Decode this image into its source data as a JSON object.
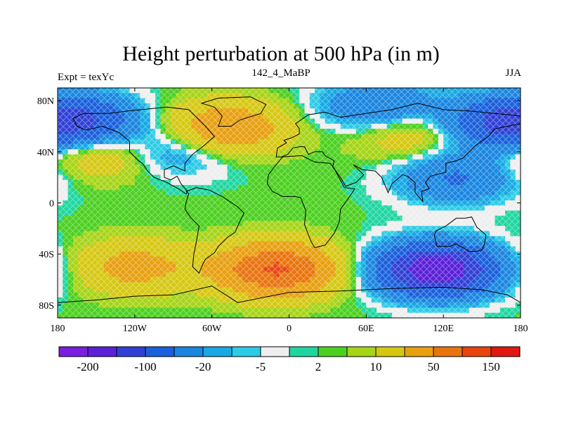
{
  "title": "Height perturbation at 500 hPa (in m)",
  "left_string": "Expt = texYc",
  "center_string": "142_4_MaBP",
  "right_string": "JJA",
  "x_ticks": [
    {
      "value": -180,
      "label": "180"
    },
    {
      "value": -120,
      "label": "120W"
    },
    {
      "value": -60,
      "label": "60W"
    },
    {
      "value": 0,
      "label": "0"
    },
    {
      "value": 60,
      "label": "60E"
    },
    {
      "value": 120,
      "label": "120E"
    },
    {
      "value": 180,
      "label": "180"
    }
  ],
  "y_ticks": [
    {
      "value": 80,
      "label": "80N"
    },
    {
      "value": 40,
      "label": "40N"
    },
    {
      "value": 0,
      "label": "0"
    },
    {
      "value": -40,
      "label": "40S"
    },
    {
      "value": -80,
      "label": "80S"
    }
  ],
  "colorbar": {
    "colors": [
      "#7a1de0",
      "#5a20d8",
      "#3040d6",
      "#1a60dc",
      "#1a86e0",
      "#18a8e4",
      "#2ccbe6",
      "#eeeeee",
      "#20d6a0",
      "#4cd020",
      "#a6d416",
      "#d6c812",
      "#e8a010",
      "#e87410",
      "#e84410",
      "#e01810"
    ],
    "labels": [
      {
        "boundary": 1,
        "text": "-200"
      },
      {
        "boundary": 3,
        "text": "-100"
      },
      {
        "boundary": 5,
        "text": "-20"
      },
      {
        "boundary": 7,
        "text": "-5"
      },
      {
        "boundary": 9,
        "text": "2"
      },
      {
        "boundary": 11,
        "text": "10"
      },
      {
        "boundary": 13,
        "text": "50"
      },
      {
        "boundary": 15,
        "text": "150"
      }
    ]
  },
  "chart_data": {
    "type": "heatmap",
    "title": "Height perturbation at 500 hPa (in m)",
    "xlim": [
      -180,
      180
    ],
    "ylim": [
      -90,
      90
    ],
    "field_features": [
      {
        "kind": "high",
        "lon": -10,
        "lat": -52,
        "value": 150
      },
      {
        "kind": "high",
        "lon": -50,
        "lat": 58,
        "value": 90
      },
      {
        "kind": "high",
        "lon": 95,
        "lat": 55,
        "value": 40
      },
      {
        "kind": "high",
        "lon": -120,
        "lat": -50,
        "value": 60
      },
      {
        "kind": "high",
        "lon": -150,
        "lat": 38,
        "value": 40
      },
      {
        "kind": "low",
        "lon": 115,
        "lat": -52,
        "value": -200
      },
      {
        "kind": "low",
        "lon": 165,
        "lat": 62,
        "value": -100
      },
      {
        "kind": "low",
        "lon": -160,
        "lat": 65,
        "value": -80
      },
      {
        "kind": "low",
        "lon": 130,
        "lat": 20,
        "value": -60
      },
      {
        "kind": "low",
        "lon": -85,
        "lat": 42,
        "value": -40
      },
      {
        "kind": "low",
        "lon": 70,
        "lat": 75,
        "value": -60
      }
    ]
  }
}
